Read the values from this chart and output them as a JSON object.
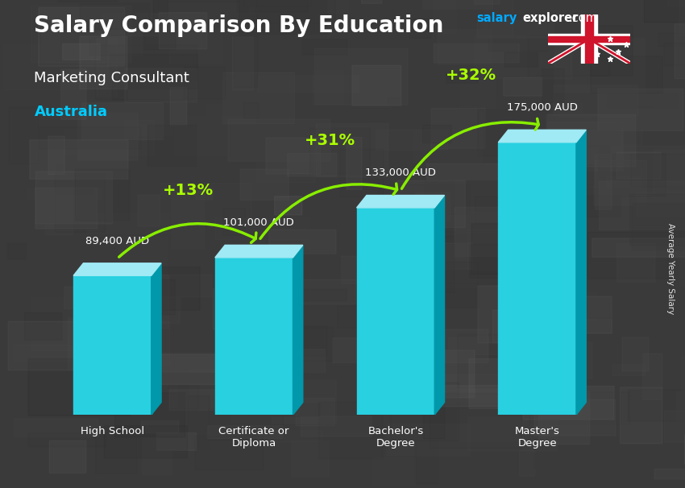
{
  "title": "Salary Comparison By Education",
  "subtitle": "Marketing Consultant",
  "country": "Australia",
  "ylabel": "Average Yearly Salary",
  "categories": [
    "High School",
    "Certificate or\nDiploma",
    "Bachelor's\nDegree",
    "Master's\nDegree"
  ],
  "values": [
    89400,
    101000,
    133000,
    175000
  ],
  "value_labels": [
    "89,400 AUD",
    "101,000 AUD",
    "133,000 AUD",
    "175,000 AUD"
  ],
  "pct_labels": [
    "+13%",
    "+31%",
    "+32%"
  ],
  "bar_face_color": "#29d0e0",
  "bar_side_color": "#0098aa",
  "bar_top_color": "#a0eaf5",
  "bg_color": "#444444",
  "title_color": "#ffffff",
  "subtitle_color": "#ffffff",
  "country_color": "#00ccff",
  "value_label_color": "#ffffff",
  "pct_color": "#aaff00",
  "arrow_color": "#88ee00",
  "watermark_salary_color": "#00aaff",
  "watermark_rest_color": "#ffffff",
  "ylim": [
    0,
    210000
  ],
  "bar_width": 0.55,
  "side_depth": 0.07
}
